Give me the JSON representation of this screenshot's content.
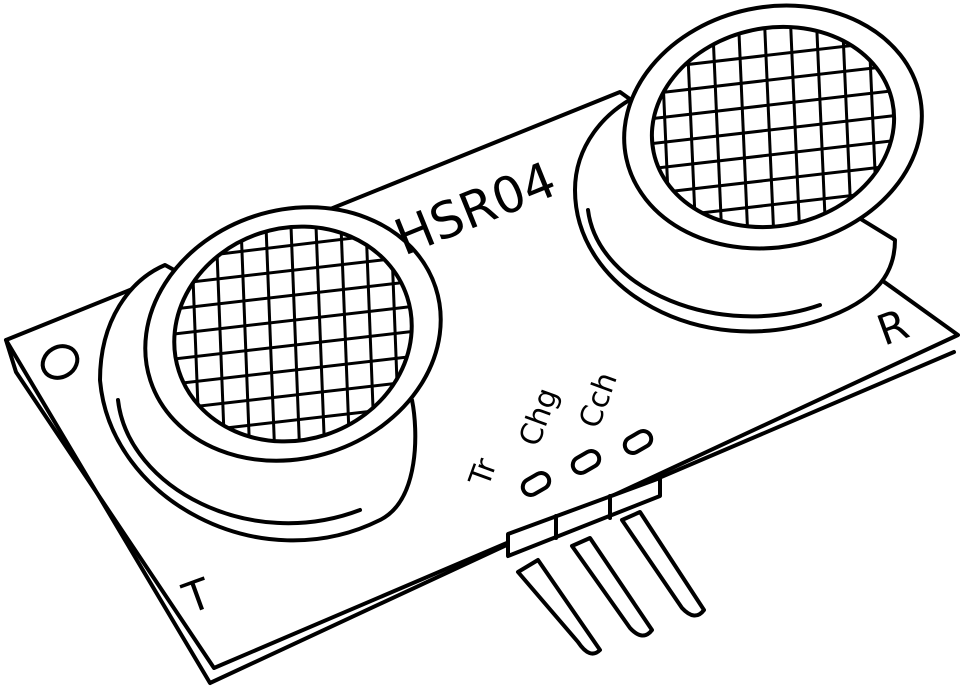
{
  "module": {
    "model_label": "HSR04",
    "transmitter_label": "T",
    "receiver_label": "R",
    "pin_labels": [
      "Tr",
      "Chg",
      "Cch"
    ]
  },
  "colors": {
    "stroke": "#000000",
    "background": "#ffffff"
  }
}
